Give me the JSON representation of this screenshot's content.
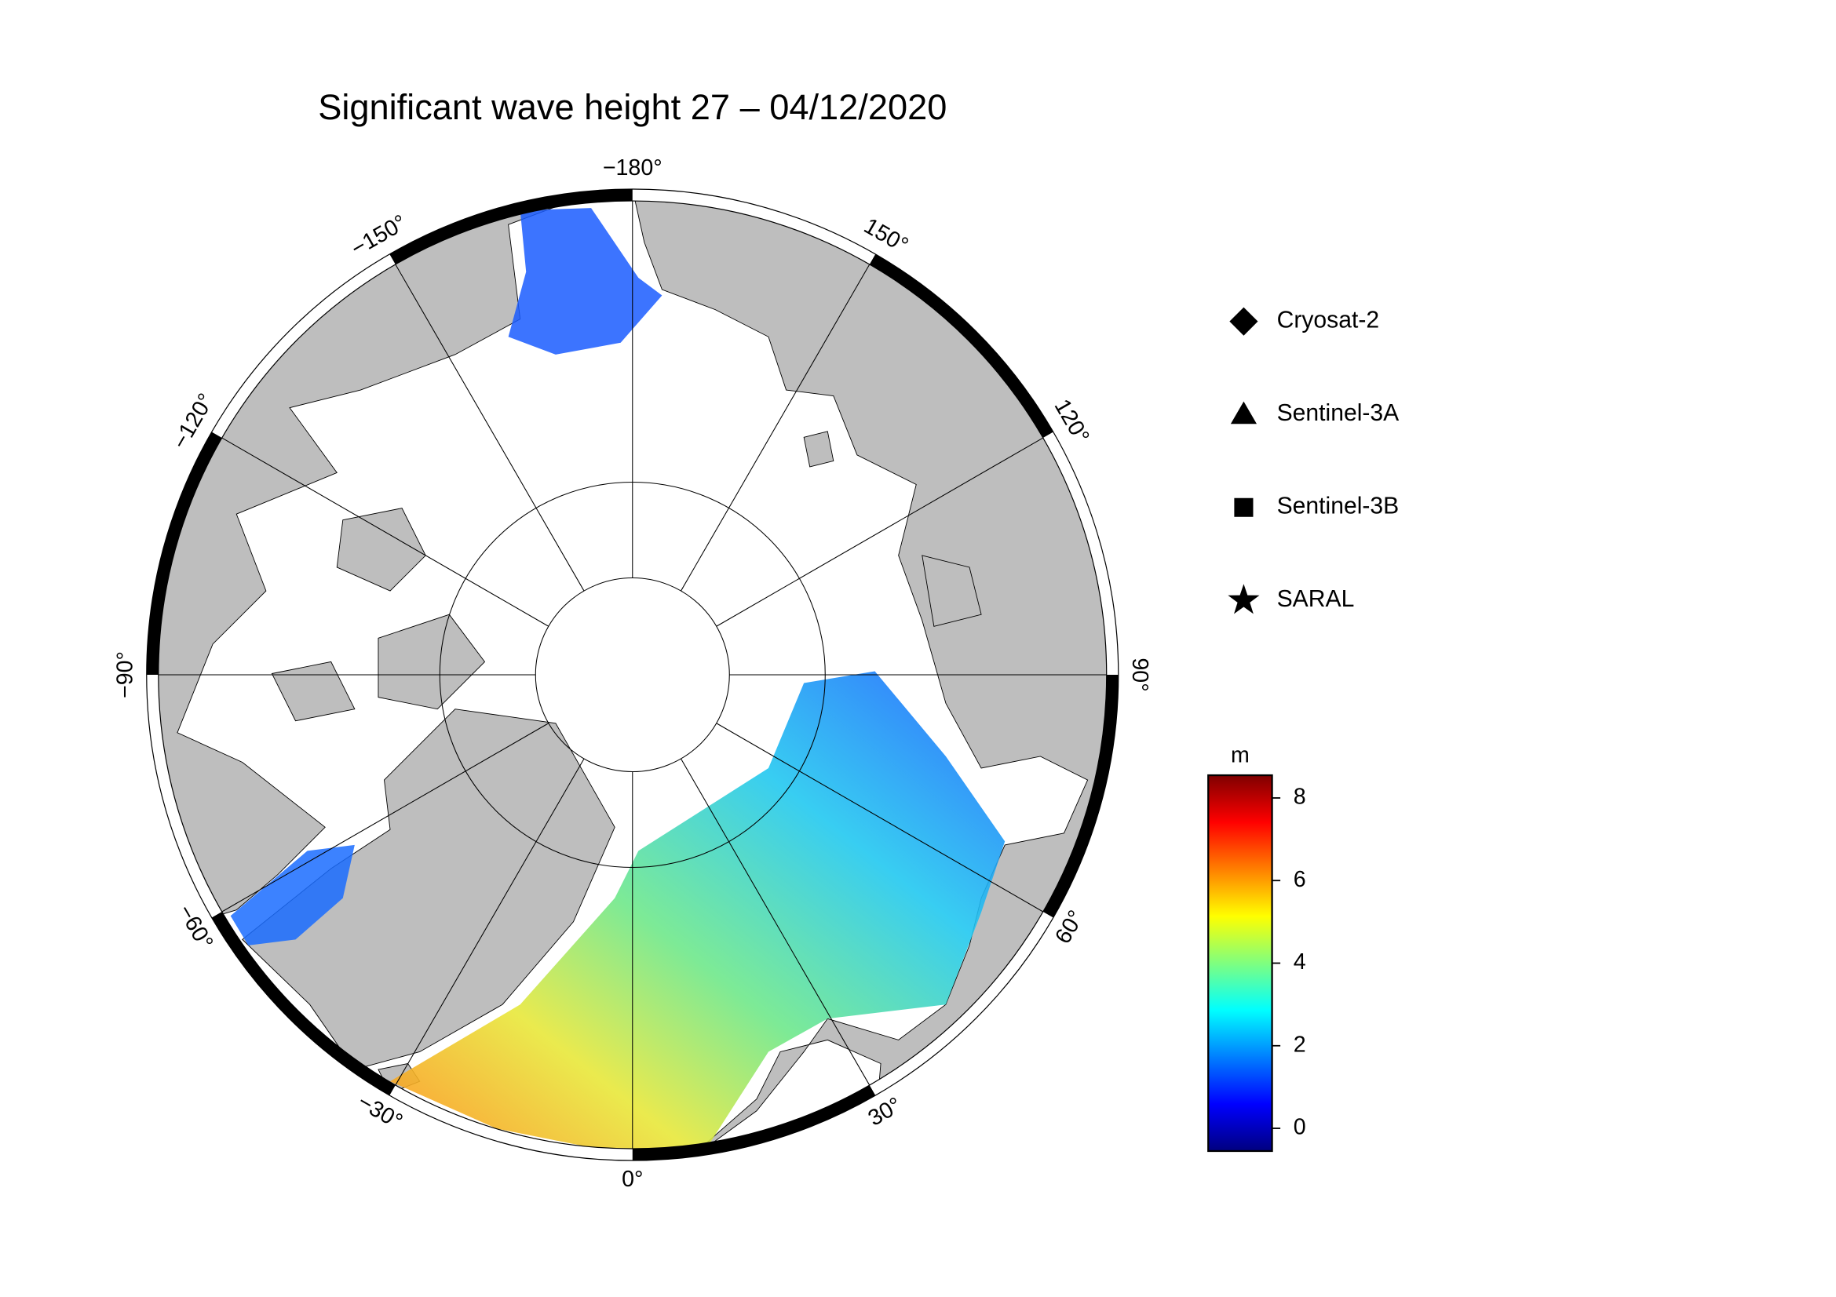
{
  "map": {
    "title": "Significant wave height 27 – 04/12/2020",
    "longitude_labels": [
      {
        "value": -180,
        "label": "−180°"
      },
      {
        "value": 150,
        "label": "150°"
      },
      {
        "value": 120,
        "label": "120°"
      },
      {
        "value": 90,
        "label": "90°"
      },
      {
        "value": 60,
        "label": "60°"
      },
      {
        "value": 30,
        "label": "30°"
      },
      {
        "value": 0,
        "label": "0°"
      },
      {
        "value": -30,
        "label": "−30°"
      },
      {
        "value": -60,
        "label": "−60°"
      },
      {
        "value": -90,
        "label": "−90°"
      },
      {
        "value": -120,
        "label": "−120°"
      },
      {
        "value": -150,
        "label": "−150°"
      }
    ],
    "legend": [
      {
        "name": "Cryosat-2",
        "marker": "diamond"
      },
      {
        "name": "Sentinel-3A",
        "marker": "triangle"
      },
      {
        "name": "Sentinel-3B",
        "marker": "square"
      },
      {
        "name": "SARAL",
        "marker": "star"
      }
    ],
    "colorbar": {
      "label": "m",
      "lim": [
        -0.55,
        8.55
      ],
      "ticks": [
        0,
        2,
        4,
        6,
        8
      ],
      "colormap": [
        "#00007f",
        "#0000ff",
        "#007fff",
        "#00ffff",
        "#7fff7f",
        "#ffff00",
        "#ff7f00",
        "#ff0000",
        "#7f0000"
      ]
    }
  }
}
